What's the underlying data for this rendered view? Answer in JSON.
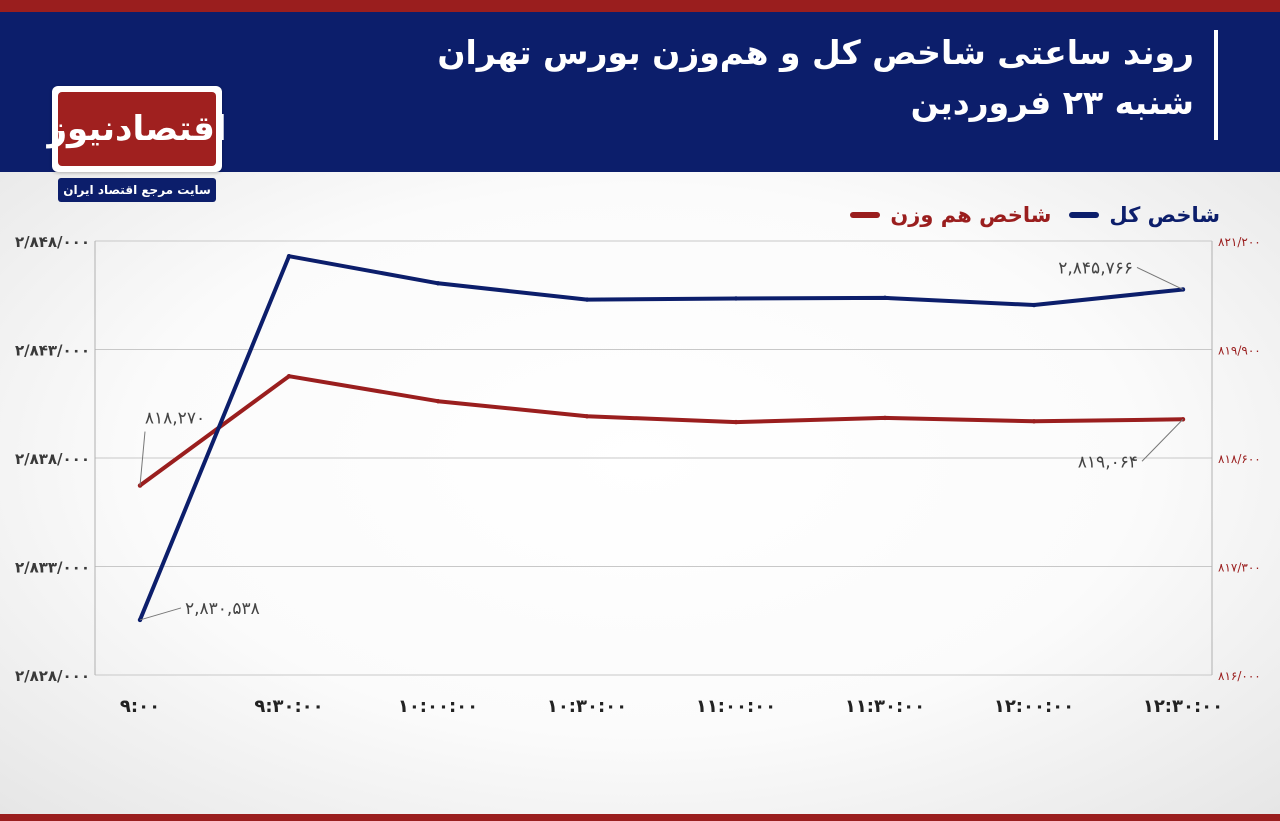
{
  "header": {
    "title_line1": "روند ساعتی شاخص کل و هم‌وزن بورس تهران",
    "title_line2": "شنبه ۲۳ فروردین"
  },
  "logo": {
    "name": "اقتصادنیوز",
    "tagline": "سایت مرجع اقتصاد ایران"
  },
  "colors": {
    "header_bg": "#0c1e6b",
    "accent_red": "#9a1e1e",
    "series_total": "#0c1e6b",
    "series_equal": "#9a1e1e"
  },
  "chart_data": {
    "type": "line",
    "x": [
      "9:00",
      "9:30:00",
      "10:00:00",
      "10:30:00",
      "11:00:00",
      "11:30:00",
      "12:00:00",
      "12:30:00"
    ],
    "series": [
      {
        "name": "شاخص کل",
        "axis": "left",
        "values": [
          2830538,
          2847300,
          2846050,
          2845300,
          2845350,
          2845380,
          2845050,
          2845766
        ]
      },
      {
        "name": "شاخص هم وزن",
        "axis": "right",
        "values": [
          818270,
          819580,
          819280,
          819100,
          819030,
          819080,
          819040,
          819064
        ]
      }
    ],
    "y_left": {
      "ylim": [
        2828000,
        2848000
      ],
      "ticks": [
        2828000,
        2833000,
        2838000,
        2843000,
        2848000
      ],
      "tick_labels": [
        "۲/۸۲۸/۰۰۰",
        "۲/۸۳۳/۰۰۰",
        "۲/۸۳۸/۰۰۰",
        "۲/۸۴۳/۰۰۰",
        "۲/۸۴۸/۰۰۰"
      ]
    },
    "y_right": {
      "ylim": [
        816000,
        821200
      ],
      "ticks": [
        816000,
        817300,
        818600,
        819900,
        821200
      ],
      "tick_labels": [
        "۸۱۶/۰۰۰",
        "۸۱۷/۳۰۰",
        "۸۱۸/۶۰۰",
        "۸۱۹/۹۰۰",
        "۸۲۱/۲۰۰"
      ]
    },
    "x_tick_labels": [
      "۹:۰۰",
      "۹:۳۰:۰۰",
      "۱۰:۰۰:۰۰",
      "۱۰:۳۰:۰۰",
      "۱۱:۰۰:۰۰",
      "۱۱:۳۰:۰۰",
      "۱۲:۰۰:۰۰",
      "۱۲:۳۰:۰۰"
    ],
    "annotations": [
      {
        "series": 0,
        "point": 0,
        "text": "۲,۸۳۰,۵۳۸"
      },
      {
        "series": 0,
        "point": 7,
        "text": "۲,۸۴۵,۷۶۶"
      },
      {
        "series": 1,
        "point": 0,
        "text": "۸۱۸,۲۷۰"
      },
      {
        "series": 1,
        "point": 7,
        "text": "۸۱۹,۰۶۴"
      }
    ],
    "grid": true,
    "legend_position": "top-right"
  }
}
